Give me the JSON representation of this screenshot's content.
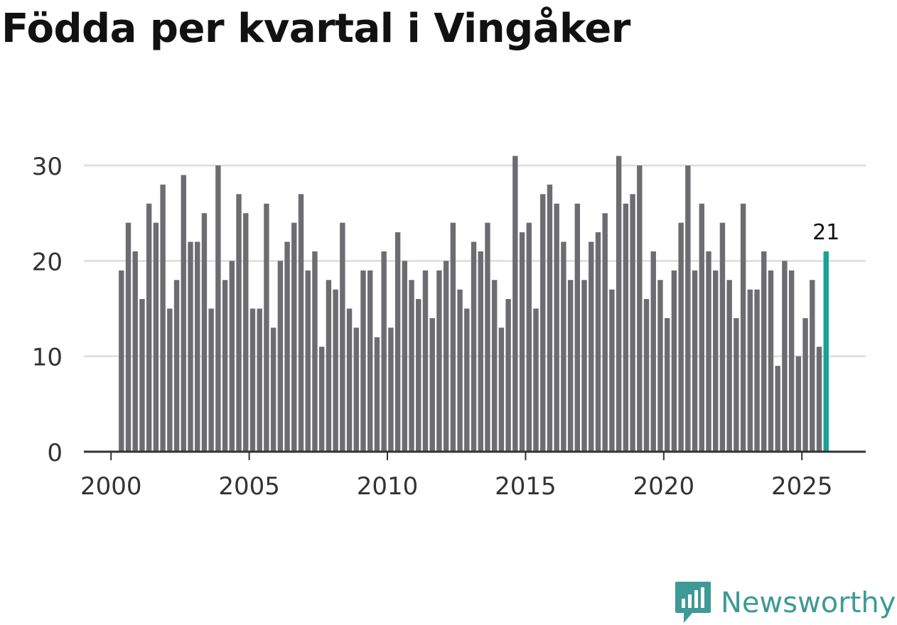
{
  "title": "Födda per kvartal i Vingåker",
  "brand": {
    "name": "Newsworthy",
    "color": "#3d9a96"
  },
  "colors": {
    "bar": "#6d6c70",
    "highlight": "#14a398",
    "grid": "#dddddd",
    "axis": "#333333",
    "text": "#333333"
  },
  "chart_data": {
    "type": "bar",
    "title": "Födda per kvartal i Vingåker",
    "xlabel": "",
    "ylabel": "",
    "ylim": [
      0,
      33
    ],
    "yticks": [
      0,
      10,
      20,
      30
    ],
    "xticks": [
      2000,
      2005,
      2010,
      2015,
      2020,
      2025
    ],
    "xtick_labels": [
      "2000",
      "2005",
      "2010",
      "2015",
      "2020",
      "2025"
    ],
    "grid": true,
    "start_year": 2000,
    "periods_per_year": 4,
    "values": [
      19,
      24,
      21,
      16,
      26,
      24,
      28,
      15,
      18,
      29,
      22,
      22,
      25,
      15,
      30,
      18,
      20,
      27,
      25,
      15,
      15,
      26,
      13,
      20,
      22,
      24,
      27,
      19,
      21,
      11,
      18,
      17,
      24,
      15,
      13,
      19,
      19,
      12,
      21,
      13,
      23,
      20,
      18,
      16,
      19,
      14,
      19,
      20,
      24,
      17,
      15,
      22,
      21,
      24,
      18,
      13,
      16,
      31,
      23,
      24,
      15,
      27,
      28,
      26,
      22,
      18,
      26,
      18,
      22,
      23,
      25,
      17,
      31,
      26,
      27,
      30,
      16,
      21,
      18,
      14,
      19,
      24,
      30,
      19,
      26,
      21,
      19,
      24,
      18,
      14,
      26,
      17,
      17,
      21,
      19,
      9,
      20,
      19,
      10,
      14,
      18,
      11,
      21
    ],
    "highlight_last": true,
    "annotation": {
      "label": "21",
      "value": 21
    }
  }
}
